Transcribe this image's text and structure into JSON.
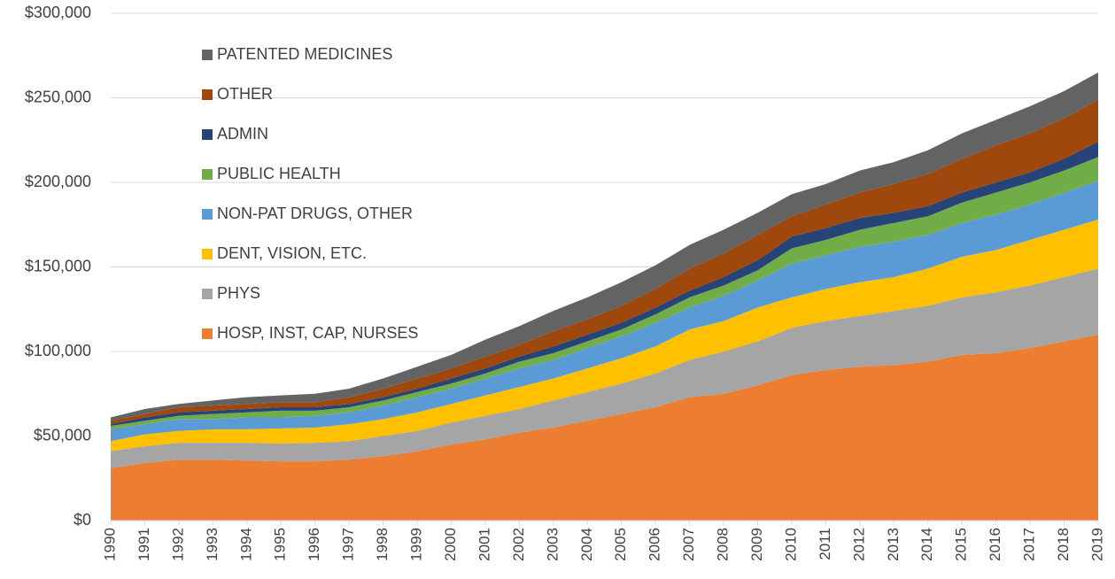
{
  "chart_data": {
    "type": "stacked_area",
    "categories": [
      "1990",
      "1991",
      "1992",
      "1993",
      "1994",
      "1995",
      "1996",
      "1997",
      "1998",
      "1999",
      "2000",
      "2001",
      "2002",
      "2003",
      "2004",
      "2005",
      "2006",
      "2007",
      "2008",
      "2009",
      "2010",
      "2011",
      "2012",
      "2013",
      "2014",
      "2015",
      "2016",
      "2017",
      "2018",
      "2019"
    ],
    "series": [
      {
        "name": "HOSP, INST, CAP, NURSES",
        "color": "#ed7d31",
        "values": [
          31000,
          34000,
          36000,
          36000,
          35500,
          35000,
          35000,
          36000,
          38000,
          41000,
          45000,
          48000,
          52000,
          55000,
          59000,
          63000,
          67000,
          73000,
          75000,
          80000,
          86000,
          89000,
          91000,
          92000,
          94000,
          98000,
          99000,
          102000,
          106000,
          110000
        ]
      },
      {
        "name": "PHYS",
        "color": "#a5a5a5",
        "values": [
          10000,
          10000,
          10000,
          10000,
          10500,
          10500,
          11000,
          11000,
          12000,
          12000,
          13000,
          14000,
          14000,
          16000,
          17000,
          18000,
          20000,
          22000,
          25000,
          26000,
          28000,
          29000,
          30000,
          32000,
          33000,
          34000,
          36000,
          37000,
          38000,
          39000
        ]
      },
      {
        "name": "DENT, VISION, ETC.",
        "color": "#ffc000",
        "values": [
          6000,
          7000,
          7000,
          8000,
          8000,
          9000,
          9000,
          10000,
          10000,
          11000,
          11000,
          12000,
          13000,
          13000,
          14000,
          15000,
          16000,
          18000,
          18000,
          20000,
          18000,
          19000,
          20000,
          20000,
          22000,
          24000,
          25000,
          27000,
          28000,
          29000
        ]
      },
      {
        "name": "NON-PAT DRUGS, OTHER",
        "color": "#5b9bd5",
        "values": [
          7000,
          6000,
          7000,
          6000,
          7000,
          6500,
          7000,
          7000,
          8000,
          9000,
          9000,
          10000,
          11000,
          11000,
          12000,
          13000,
          14000,
          13000,
          15000,
          16000,
          20000,
          20000,
          21000,
          21000,
          20000,
          20000,
          21000,
          21000,
          22000,
          23000
        ]
      },
      {
        "name": "PUBLIC HEALTH",
        "color": "#70ad47",
        "values": [
          2000,
          2000,
          2000,
          3000,
          3000,
          4000,
          3000,
          3000,
          3000,
          3000,
          3000,
          3000,
          4000,
          4000,
          4000,
          4000,
          5000,
          6000,
          6000,
          6000,
          9000,
          9000,
          10000,
          11000,
          11000,
          12000,
          13000,
          13000,
          13000,
          14000
        ]
      },
      {
        "name": "ADMIN",
        "color": "#264478",
        "values": [
          1000,
          2000,
          2000,
          2000,
          2000,
          2000,
          2000,
          2000,
          2000,
          2000,
          3000,
          3000,
          3000,
          4000,
          4000,
          4000,
          4000,
          4000,
          5000,
          6000,
          7000,
          7000,
          7000,
          6000,
          6000,
          6000,
          6000,
          6000,
          7000,
          9000
        ]
      },
      {
        "name": "OTHER",
        "color": "#9e480e",
        "values": [
          2000,
          2000,
          3000,
          3000,
          3000,
          3000,
          3000,
          4000,
          5000,
          6000,
          6000,
          7000,
          7000,
          9000,
          9000,
          10000,
          11000,
          13000,
          14000,
          15000,
          12000,
          14000,
          15000,
          17000,
          19000,
          20000,
          22000,
          23000,
          24000,
          25000
        ]
      },
      {
        "name": "PATENTED MEDICINES",
        "color": "#636363",
        "values": [
          2000,
          3000,
          2000,
          3000,
          4000,
          4000,
          5000,
          5000,
          6000,
          7000,
          8000,
          10000,
          11000,
          12000,
          13000,
          14000,
          14000,
          14000,
          14000,
          13000,
          13000,
          12000,
          13000,
          13000,
          14000,
          15000,
          15000,
          16000,
          16000,
          16000
        ]
      }
    ],
    "ylim": [
      0,
      300000
    ],
    "yticks": [
      {
        "value": 0,
        "label": "$0"
      },
      {
        "value": 50000,
        "label": "$50,000"
      },
      {
        "value": 100000,
        "label": "$100,000"
      },
      {
        "value": 150000,
        "label": "$150,000"
      },
      {
        "value": 200000,
        "label": "$200,000"
      },
      {
        "value": 250000,
        "label": "$250,000"
      },
      {
        "value": 300000,
        "label": "$300,000"
      }
    ],
    "grid": true,
    "legend": "upper left"
  }
}
